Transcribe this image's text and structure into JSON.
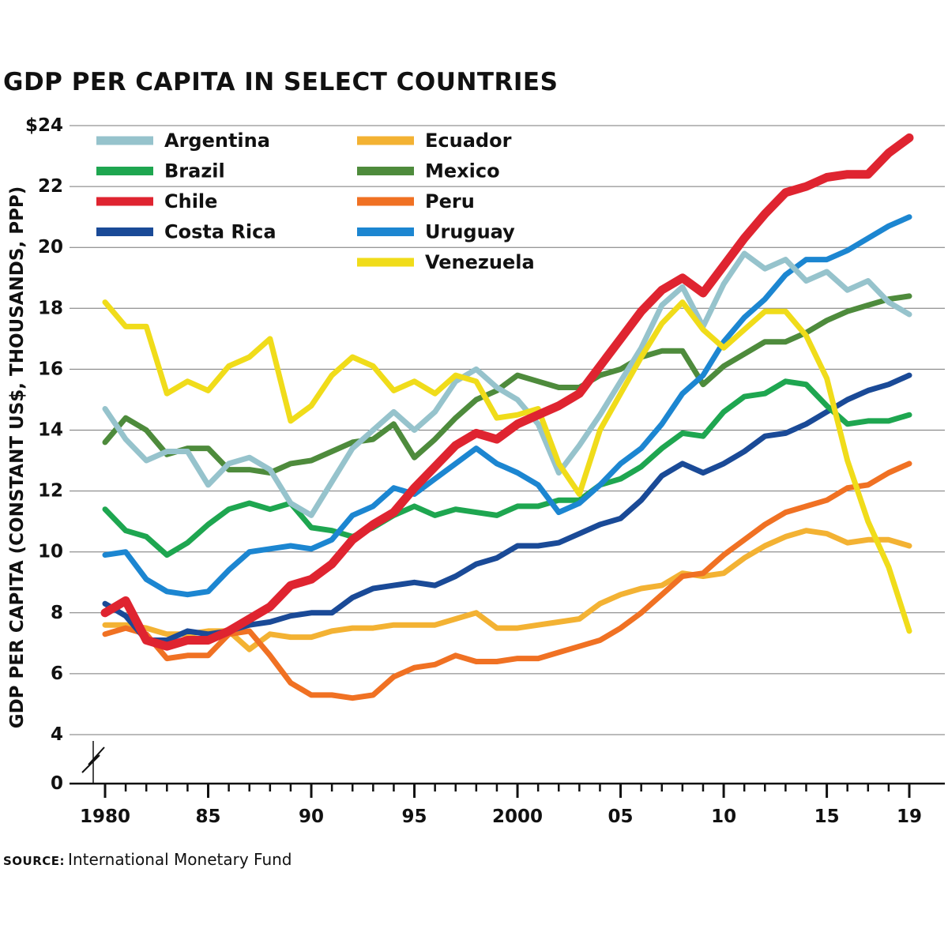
{
  "title": "GDP PER CAPITA IN SELECT COUNTRIES",
  "source": {
    "label": "SOURCE:",
    "text": "International Monetary Fund"
  },
  "chart_data": {
    "type": "line",
    "title": "GDP PER CAPITA IN SELECT COUNTRIES",
    "xlabel": "",
    "ylabel": "GDP PER CAPITA (CONSTANT US$, THOUSANDS, PPP)",
    "ylim": [
      0,
      24
    ],
    "y_axis_break": [
      0,
      4
    ],
    "grid": true,
    "legend_position": "top-left",
    "y_ticks": [
      0,
      4,
      6,
      8,
      10,
      12,
      14,
      16,
      18,
      20,
      22,
      24
    ],
    "y_tick_labels": [
      "0",
      "4",
      "6",
      "8",
      "10",
      "12",
      "14",
      "16",
      "18",
      "20",
      "22",
      "$24"
    ],
    "x_ticks": [
      1980,
      1985,
      1990,
      1995,
      2000,
      2005,
      2010,
      2015,
      2019
    ],
    "x_tick_labels": [
      "1980",
      "85",
      "90",
      "95",
      "2000",
      "05",
      "10",
      "15",
      "19"
    ],
    "x": [
      1980,
      1981,
      1982,
      1983,
      1984,
      1985,
      1986,
      1987,
      1988,
      1989,
      1990,
      1991,
      1992,
      1993,
      1994,
      1995,
      1996,
      1997,
      1998,
      1999,
      2000,
      2001,
      2002,
      2003,
      2004,
      2005,
      2006,
      2007,
      2008,
      2009,
      2010,
      2011,
      2012,
      2013,
      2014,
      2015,
      2016,
      2017,
      2018,
      2019
    ],
    "series": [
      {
        "name": "Argentina",
        "color": "#96c3cc",
        "values": [
          14.7,
          13.7,
          13.0,
          13.3,
          13.3,
          12.2,
          12.9,
          13.1,
          12.7,
          11.6,
          11.2,
          12.3,
          13.4,
          14.0,
          14.6,
          14.0,
          14.6,
          15.6,
          16.0,
          15.4,
          15.0,
          14.2,
          12.6,
          13.5,
          14.5,
          15.6,
          16.7,
          18.1,
          18.7,
          17.4,
          18.8,
          19.8,
          19.3,
          19.6,
          18.9,
          19.2,
          18.6,
          18.9,
          18.2,
          17.8
        ]
      },
      {
        "name": "Ecuador",
        "color": "#f3b233",
        "values": [
          7.6,
          7.6,
          7.5,
          7.3,
          7.3,
          7.4,
          7.4,
          6.8,
          7.3,
          7.2,
          7.2,
          7.4,
          7.5,
          7.5,
          7.6,
          7.6,
          7.6,
          7.8,
          8.0,
          7.5,
          7.5,
          7.6,
          7.7,
          7.8,
          8.3,
          8.6,
          8.8,
          8.9,
          9.3,
          9.2,
          9.3,
          9.8,
          10.2,
          10.5,
          10.7,
          10.6,
          10.3,
          10.4,
          10.4,
          10.2
        ]
      },
      {
        "name": "Brazil",
        "color": "#1ea650",
        "values": [
          11.4,
          10.7,
          10.5,
          9.9,
          10.3,
          10.9,
          11.4,
          11.6,
          11.4,
          11.6,
          10.8,
          10.7,
          10.5,
          10.8,
          11.2,
          11.5,
          11.2,
          11.4,
          11.3,
          11.2,
          11.5,
          11.5,
          11.7,
          11.7,
          12.2,
          12.4,
          12.8,
          13.4,
          13.9,
          13.8,
          14.6,
          15.1,
          15.2,
          15.6,
          15.5,
          14.8,
          14.2,
          14.3,
          14.3,
          14.5
        ]
      },
      {
        "name": "Mexico",
        "color": "#4e8b3c",
        "values": [
          13.6,
          14.4,
          14.0,
          13.2,
          13.4,
          13.4,
          12.7,
          12.7,
          12.6,
          12.9,
          13.0,
          13.3,
          13.6,
          13.7,
          14.2,
          13.1,
          13.7,
          14.4,
          15.0,
          15.3,
          15.8,
          15.6,
          15.4,
          15.4,
          15.8,
          16.0,
          16.4,
          16.6,
          16.6,
          15.5,
          16.1,
          16.5,
          16.9,
          16.9,
          17.2,
          17.6,
          17.9,
          18.1,
          18.3,
          18.4
        ]
      },
      {
        "name": "Chile",
        "color": "#df2430",
        "values": [
          8.0,
          8.4,
          7.1,
          6.9,
          7.1,
          7.1,
          7.4,
          7.8,
          8.2,
          8.9,
          9.1,
          9.6,
          10.4,
          10.9,
          11.3,
          12.1,
          12.8,
          13.5,
          13.9,
          13.7,
          14.2,
          14.5,
          14.8,
          15.2,
          16.1,
          17.0,
          17.9,
          18.6,
          19.0,
          18.5,
          19.4,
          20.3,
          21.1,
          21.8,
          22.0,
          22.3,
          22.4,
          22.4,
          23.1,
          23.6
        ]
      },
      {
        "name": "Peru",
        "color": "#f07123",
        "values": [
          7.3,
          7.5,
          7.3,
          6.5,
          6.6,
          6.6,
          7.3,
          7.4,
          6.6,
          5.7,
          5.3,
          5.3,
          5.2,
          5.3,
          5.9,
          6.2,
          6.3,
          6.6,
          6.4,
          6.4,
          6.5,
          6.5,
          6.7,
          6.9,
          7.1,
          7.5,
          8.0,
          8.6,
          9.2,
          9.3,
          9.9,
          10.4,
          10.9,
          11.3,
          11.5,
          11.7,
          12.1,
          12.2,
          12.6,
          12.9
        ]
      },
      {
        "name": "Costa Rica",
        "color": "#1a4a97",
        "values": [
          8.3,
          7.9,
          7.1,
          7.1,
          7.4,
          7.3,
          7.4,
          7.6,
          7.7,
          7.9,
          8.0,
          8.0,
          8.5,
          8.8,
          8.9,
          9.0,
          8.9,
          9.2,
          9.6,
          9.8,
          10.2,
          10.2,
          10.3,
          10.6,
          10.9,
          11.1,
          11.7,
          12.5,
          12.9,
          12.6,
          12.9,
          13.3,
          13.8,
          13.9,
          14.2,
          14.6,
          15.0,
          15.3,
          15.5,
          15.8
        ]
      },
      {
        "name": "Uruguay",
        "color": "#1c86d1",
        "values": [
          9.9,
          10.0,
          9.1,
          8.7,
          8.6,
          8.7,
          9.4,
          10.0,
          10.1,
          10.2,
          10.1,
          10.4,
          11.2,
          11.5,
          12.1,
          11.9,
          12.4,
          12.9,
          13.4,
          12.9,
          12.6,
          12.2,
          11.3,
          11.6,
          12.2,
          12.9,
          13.4,
          14.2,
          15.2,
          15.8,
          16.9,
          17.7,
          18.3,
          19.1,
          19.6,
          19.6,
          19.9,
          20.3,
          20.7,
          21.0
        ]
      },
      {
        "name": "Venezuela",
        "color": "#f0dc1a",
        "values": [
          18.2,
          17.4,
          17.4,
          15.2,
          15.6,
          15.3,
          16.1,
          16.4,
          17.0,
          14.3,
          14.8,
          15.8,
          16.4,
          16.1,
          15.3,
          15.6,
          15.2,
          15.8,
          15.6,
          14.4,
          14.5,
          14.7,
          12.9,
          11.9,
          14.0,
          15.2,
          16.4,
          17.5,
          18.2,
          17.3,
          16.7,
          17.3,
          17.9,
          17.9,
          17.1,
          15.7,
          13.0,
          11.0,
          9.5,
          7.4
        ]
      }
    ]
  }
}
